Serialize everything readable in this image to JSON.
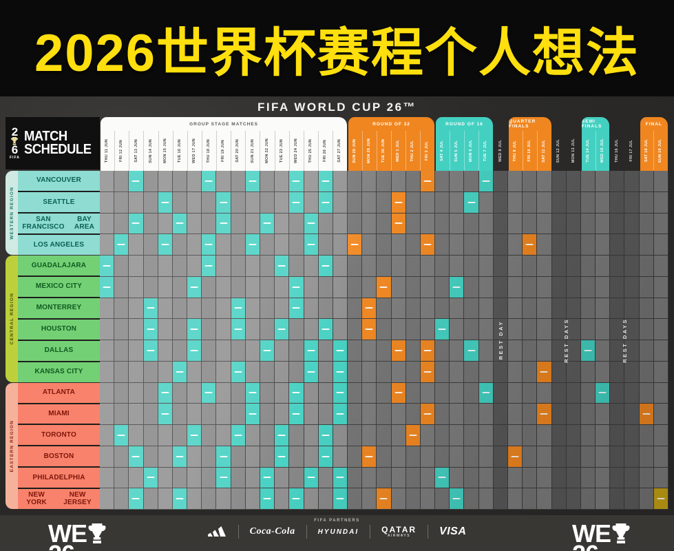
{
  "title": {
    "text": "2026世界杯赛程个人想法"
  },
  "poster": {
    "brand": "FIFA WORLD CUP 26™"
  },
  "logo": {
    "num2": "2",
    "num6": "6",
    "fifa": "FIFA",
    "line1": "MATCH",
    "line2": "SCHEDULE"
  },
  "footer": {
    "partners_label": "FIFA PARTNERS",
    "sponsors": [
      "adidas",
      "Coca-Cola",
      "HYUNDAI",
      "QATAR AIRWAYS",
      "VISA"
    ],
    "campaign_line1": "WE",
    "campaign_line2": "26"
  },
  "colors": {
    "title_yellow": "#ffdf0e",
    "teal": "#43d0c1",
    "orange": "#f0861f",
    "final_gold": "#c7a416",
    "western": "#8edcd2",
    "central": "#74d074",
    "eastern": "#f8826b"
  },
  "chart_data": {
    "type": "table",
    "title": "FIFA World Cup 26 Match Schedule",
    "sections": [
      {
        "id": "group",
        "label": "GROUP STAGE MATCHES",
        "c0": 1,
        "c1": 17,
        "bg": "#fbfbf9",
        "fg": "#4a4a4a",
        "rest": false
      },
      {
        "id": "r32",
        "label": "ROUND OF 32",
        "c0": 18,
        "c1": 23,
        "bg": "#f0861f",
        "fg": "#ffffff",
        "rest": false
      },
      {
        "id": "r16",
        "label": "ROUND OF 16",
        "c0": 24,
        "c1": 27,
        "bg": "#43d0c1",
        "fg": "#ffffff",
        "rest": false
      },
      {
        "id": "rest1",
        "label": "REST DAY",
        "c0": 28,
        "c1": 28,
        "rest": true
      },
      {
        "id": "qf",
        "label": "QUARTER FINALS",
        "c0": 29,
        "c1": 31,
        "bg": "#f0861f",
        "fg": "#ffffff",
        "rest": false
      },
      {
        "id": "rest2",
        "label": "REST DAYS",
        "c0": 32,
        "c1": 33,
        "rest": true
      },
      {
        "id": "sf",
        "label": "SEMI FINALS",
        "c0": 34,
        "c1": 35,
        "bg": "#43d0c1",
        "fg": "#ffffff",
        "rest": false
      },
      {
        "id": "rest3",
        "label": "REST DAYS",
        "c0": 36,
        "c1": 37,
        "rest": true
      },
      {
        "id": "final",
        "label": "FINAL",
        "c0": 38,
        "c1": 39,
        "bg": "#f0861f",
        "fg": "#ffffff",
        "rest": false
      }
    ],
    "dates": [
      "THU 11 JUN",
      "FRI 12 JUN",
      "SAT 13 JUN",
      "SUN 14 JUN",
      "MON 15 JUN",
      "TUE 16 JUN",
      "WED 17 JUN",
      "THU 18 JUN",
      "FRI 19 JUN",
      "SAT 20 JUN",
      "SUN 21 JUN",
      "MON 22 JUN",
      "TUE 23 JUN",
      "WED 24 JUN",
      "THU 25 JUN",
      "FRI 26 JUN",
      "SAT 27 JUN",
      "SUN 28 JUN",
      "MON 29 JUN",
      "TUE 30 JUN",
      "WED 1 JUL",
      "THU 2 JUL",
      "FRI 3 JUL",
      "SAT 4 JUL",
      "SUN 5 JUL",
      "MON 6 JUL",
      "TUE 7 JUL",
      "WED 8 JUL",
      "THU 9 JUL",
      "FRI 10 JUL",
      "SAT 11 JUL",
      "SUN 12 JUL",
      "MON 13 JUL",
      "TUE 14 JUL",
      "WED 15 JUL",
      "THU 16 JUL",
      "FRI 17 JUL",
      "SAT 18 JUL",
      "SUN 19 JUL"
    ],
    "regions": [
      {
        "name": "WESTERN REGION",
        "tab_bg": "#cfeae3",
        "tab_fg": "#177a6d",
        "cell_bg": "#8edcd2",
        "cell_fg": "#0b5f56",
        "cities": [
          "VANCOUVER",
          "SEATTLE",
          "SAN FRANCISCO|BAY AREA",
          "LOS ANGELES"
        ]
      },
      {
        "name": "CENTRAL REGION",
        "tab_bg": "#bdd03b",
        "tab_fg": "#44510a",
        "cell_bg": "#74d074",
        "cell_fg": "#0e5a20",
        "cities": [
          "GUADALAJARA",
          "MEXICO CITY",
          "MONTERREY",
          "HOUSTON",
          "DALLAS",
          "KANSAS CITY"
        ]
      },
      {
        "name": "EASTERN REGION",
        "tab_bg": "#f6b19b",
        "tab_fg": "#93291a",
        "cell_bg": "#f8826b",
        "cell_fg": "#7e150b",
        "cities": [
          "ATLANTA",
          "MIAMI",
          "TORONTO",
          "BOSTON",
          "PHILADELPHIA",
          "NEW YORK|NEW JERSEY"
        ]
      }
    ],
    "match_cells": {
      "teal": [
        [
          1,
          3
        ],
        [
          1,
          8
        ],
        [
          1,
          11
        ],
        [
          1,
          14
        ],
        [
          1,
          16
        ],
        [
          1,
          27
        ],
        [
          2,
          5
        ],
        [
          2,
          9
        ],
        [
          2,
          14
        ],
        [
          2,
          16
        ],
        [
          2,
          26
        ],
        [
          3,
          3
        ],
        [
          3,
          6
        ],
        [
          3,
          9
        ],
        [
          3,
          12
        ],
        [
          3,
          15
        ],
        [
          4,
          2
        ],
        [
          4,
          5
        ],
        [
          4,
          8
        ],
        [
          4,
          11
        ],
        [
          4,
          15
        ],
        [
          5,
          1
        ],
        [
          5,
          8
        ],
        [
          5,
          13
        ],
        [
          5,
          16
        ],
        [
          6,
          1
        ],
        [
          6,
          7
        ],
        [
          6,
          14
        ],
        [
          6,
          25
        ],
        [
          7,
          4
        ],
        [
          7,
          10
        ],
        [
          7,
          14
        ],
        [
          8,
          4
        ],
        [
          8,
          7
        ],
        [
          8,
          10
        ],
        [
          8,
          13
        ],
        [
          8,
          16
        ],
        [
          8,
          24
        ],
        [
          9,
          4
        ],
        [
          9,
          7
        ],
        [
          9,
          12
        ],
        [
          9,
          15
        ],
        [
          9,
          17
        ],
        [
          9,
          26
        ],
        [
          9,
          34
        ],
        [
          10,
          6
        ],
        [
          10,
          10
        ],
        [
          10,
          15
        ],
        [
          10,
          17
        ],
        [
          11,
          5
        ],
        [
          11,
          8
        ],
        [
          11,
          11
        ],
        [
          11,
          14
        ],
        [
          11,
          17
        ],
        [
          11,
          27
        ],
        [
          11,
          35
        ],
        [
          12,
          5
        ],
        [
          12,
          11
        ],
        [
          12,
          14
        ],
        [
          12,
          17
        ],
        [
          13,
          2
        ],
        [
          13,
          7
        ],
        [
          13,
          10
        ],
        [
          13,
          13
        ],
        [
          13,
          16
        ],
        [
          14,
          3
        ],
        [
          14,
          6
        ],
        [
          14,
          9
        ],
        [
          14,
          13
        ],
        [
          14,
          16
        ],
        [
          15,
          4
        ],
        [
          15,
          9
        ],
        [
          15,
          12
        ],
        [
          15,
          15
        ],
        [
          15,
          17
        ],
        [
          15,
          24
        ],
        [
          16,
          3
        ],
        [
          16,
          6
        ],
        [
          16,
          12
        ],
        [
          16,
          14
        ],
        [
          16,
          17
        ],
        [
          16,
          25
        ]
      ],
      "orange": [
        [
          1,
          23
        ],
        [
          2,
          21
        ],
        [
          3,
          21
        ],
        [
          4,
          18
        ],
        [
          4,
          23
        ],
        [
          4,
          30
        ],
        [
          6,
          20
        ],
        [
          7,
          19
        ],
        [
          8,
          19
        ],
        [
          9,
          21
        ],
        [
          9,
          23
        ],
        [
          10,
          23
        ],
        [
          10,
          31
        ],
        [
          11,
          21
        ],
        [
          12,
          23
        ],
        [
          12,
          31
        ],
        [
          12,
          38
        ],
        [
          13,
          22
        ],
        [
          14,
          19
        ],
        [
          14,
          29
        ],
        [
          16,
          20
        ]
      ],
      "gold": [
        [
          16,
          39
        ]
      ]
    }
  }
}
